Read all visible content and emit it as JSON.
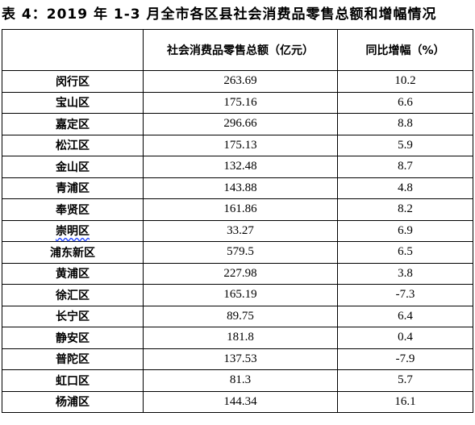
{
  "title": "表 4：2019 年 1-3 月全市各区县社会消费品零售总额和增幅情况",
  "table": {
    "headers": [
      "",
      "社会消费品零售总额（亿元）",
      "同比增幅（%）"
    ],
    "rows": [
      {
        "district": "闵行区",
        "total": "263.69",
        "growth": "10.2"
      },
      {
        "district": "宝山区",
        "total": "175.16",
        "growth": "6.6"
      },
      {
        "district": "嘉定区",
        "total": "296.66",
        "growth": "8.8"
      },
      {
        "district": "松江区",
        "total": "175.13",
        "growth": "5.9"
      },
      {
        "district": "金山区",
        "total": "132.48",
        "growth": "8.7"
      },
      {
        "district": "青浦区",
        "total": "143.88",
        "growth": "4.8"
      },
      {
        "district": "奉贤区",
        "total": "161.86",
        "growth": "8.2"
      },
      {
        "district": "崇明区",
        "total": "33.27",
        "growth": "6.9"
      },
      {
        "district": "浦东新区",
        "total": "579.5",
        "growth": "6.5"
      },
      {
        "district": "黄浦区",
        "total": "227.98",
        "growth": "3.8"
      },
      {
        "district": "徐汇区",
        "total": "165.19",
        "growth": "-7.3"
      },
      {
        "district": "长宁区",
        "total": "89.75",
        "growth": "6.4"
      },
      {
        "district": "静安区",
        "total": "181.8",
        "growth": "0.4"
      },
      {
        "district": "普陀区",
        "total": "137.53",
        "growth": "-7.9"
      },
      {
        "district": "虹口区",
        "total": "81.3",
        "growth": "5.7"
      },
      {
        "district": "杨浦区",
        "total": "144.34",
        "growth": "16.1"
      }
    ]
  }
}
